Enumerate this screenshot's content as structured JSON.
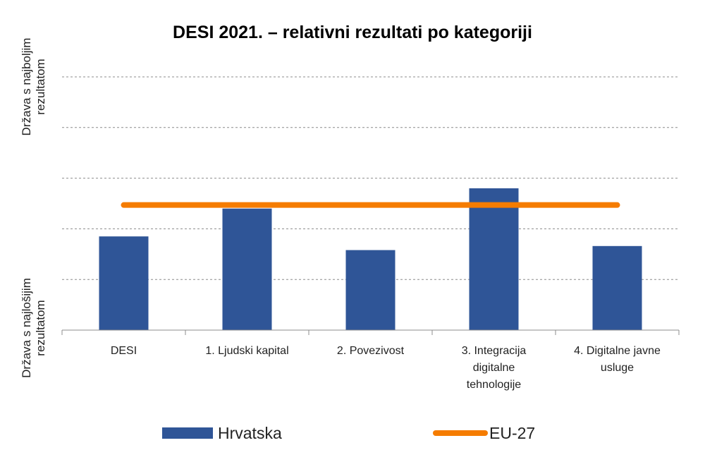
{
  "chart_data": {
    "type": "bar",
    "title": "DESI 2021. – relativni rezultati po kategoriji",
    "ylabel_top": [
      "Država s najboljim",
      "rezultatom"
    ],
    "ylabel_bottom": [
      "Država s najlošijim",
      "rezultatom"
    ],
    "categories": [
      [
        "DESI"
      ],
      [
        "1. Ljudski kapital"
      ],
      [
        "2. Povezivost"
      ],
      [
        "3. Integracija",
        "digitalne",
        "tehnologije"
      ],
      [
        "4. Digitalne javne",
        "usluge"
      ]
    ],
    "ylim": [
      0,
      5
    ],
    "grid": true,
    "series": [
      {
        "name": "Hrvatska",
        "type": "bar",
        "color": "#2f5597",
        "values": [
          1.85,
          2.4,
          1.58,
          2.8,
          1.66
        ]
      },
      {
        "name": "EU-27",
        "type": "line",
        "color": "#f57c00",
        "values": [
          2.47,
          2.47,
          2.47,
          2.47,
          2.47
        ]
      }
    ],
    "legend_position": "bottom"
  }
}
